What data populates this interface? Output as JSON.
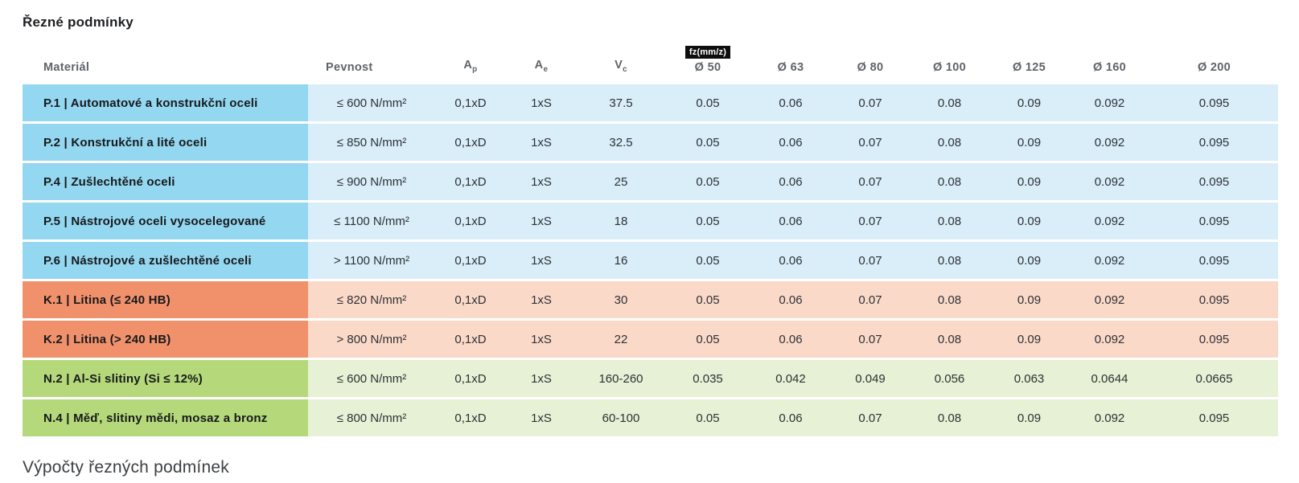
{
  "page": {
    "title": "Řezné podmínky",
    "footer_heading": "Výpočty řezných podmínek"
  },
  "colors": {
    "steel-dark": "#94d7f0",
    "steel-light": "#d9eef9",
    "cast-iron-dark": "#f0916c",
    "cast-iron-light": "#fbd9c8",
    "nonferrous-dark": "#b5d97a",
    "nonferrous-light": "#e7f1d5",
    "badge-bg": "#0e0e0e"
  },
  "table": {
    "fz_badge": "fz(mm/z)",
    "columns": {
      "material": "Materiál",
      "pevnost": "Pevnost",
      "ap": {
        "main": "A",
        "sub": "p"
      },
      "ae": {
        "main": "A",
        "sub": "e"
      },
      "vc": {
        "main": "V",
        "sub": "c"
      },
      "diameters": [
        "Ø 50",
        "Ø 63",
        "Ø 80",
        "Ø 100",
        "Ø 125",
        "Ø 160",
        "Ø 200"
      ]
    },
    "rows": [
      {
        "material": "P.1 | Automatové a konstrukční oceli",
        "pevnost": "≤ 600 N/mm²",
        "ap": "0,1xD",
        "ae": "1xS",
        "vc": "37.5",
        "fz": [
          "0.05",
          "0.06",
          "0.07",
          "0.08",
          "0.09",
          "0.092",
          "0.095"
        ]
      },
      {
        "material": "P.2 | Konstrukční a lité oceli",
        "pevnost": "≤ 850 N/mm²",
        "ap": "0,1xD",
        "ae": "1xS",
        "vc": "32.5",
        "fz": [
          "0.05",
          "0.06",
          "0.07",
          "0.08",
          "0.09",
          "0.092",
          "0.095"
        ]
      },
      {
        "material": "P.4 | Zušlechtěné oceli",
        "pevnost": "≤ 900 N/mm²",
        "ap": "0,1xD",
        "ae": "1xS",
        "vc": "25",
        "fz": [
          "0.05",
          "0.06",
          "0.07",
          "0.08",
          "0.09",
          "0.092",
          "0.095"
        ]
      },
      {
        "material": "P.5 | Nástrojové oceli vysocelegované",
        "pevnost": "≤ 1100 N/mm²",
        "ap": "0,1xD",
        "ae": "1xS",
        "vc": "18",
        "fz": [
          "0.05",
          "0.06",
          "0.07",
          "0.08",
          "0.09",
          "0.092",
          "0.095"
        ]
      },
      {
        "material": "P.6 | Nástrojové a zušlechtěné oceli",
        "pevnost": "> 1100 N/mm²",
        "ap": "0,1xD",
        "ae": "1xS",
        "vc": "16",
        "fz": [
          "0.05",
          "0.06",
          "0.07",
          "0.08",
          "0.09",
          "0.092",
          "0.095"
        ]
      },
      {
        "material": "K.1 | Litina (≤ 240 HB)",
        "pevnost": "≤ 820 N/mm²",
        "ap": "0,1xD",
        "ae": "1xS",
        "vc": "30",
        "fz": [
          "0.05",
          "0.06",
          "0.07",
          "0.08",
          "0.09",
          "0.092",
          "0.095"
        ]
      },
      {
        "material": "K.2 | Litina (> 240 HB)",
        "pevnost": "> 800 N/mm²",
        "ap": "0,1xD",
        "ae": "1xS",
        "vc": "22",
        "fz": [
          "0.05",
          "0.06",
          "0.07",
          "0.08",
          "0.09",
          "0.092",
          "0.095"
        ]
      },
      {
        "material": "N.2 | Al-Si slitiny (Si ≤ 12%)",
        "pevnost": "≤ 600 N/mm²",
        "ap": "0,1xD",
        "ae": "1xS",
        "vc": "160-260",
        "fz": [
          "0.035",
          "0.042",
          "0.049",
          "0.056",
          "0.063",
          "0.0644",
          "0.0665"
        ]
      },
      {
        "material": "N.4 | Měď, slitiny mědi, mosaz a bronz",
        "pevnost": "≤ 800 N/mm²",
        "ap": "0,1xD",
        "ae": "1xS",
        "vc": "60-100",
        "fz": [
          "0.05",
          "0.06",
          "0.07",
          "0.08",
          "0.09",
          "0.092",
          "0.095"
        ]
      }
    ]
  }
}
